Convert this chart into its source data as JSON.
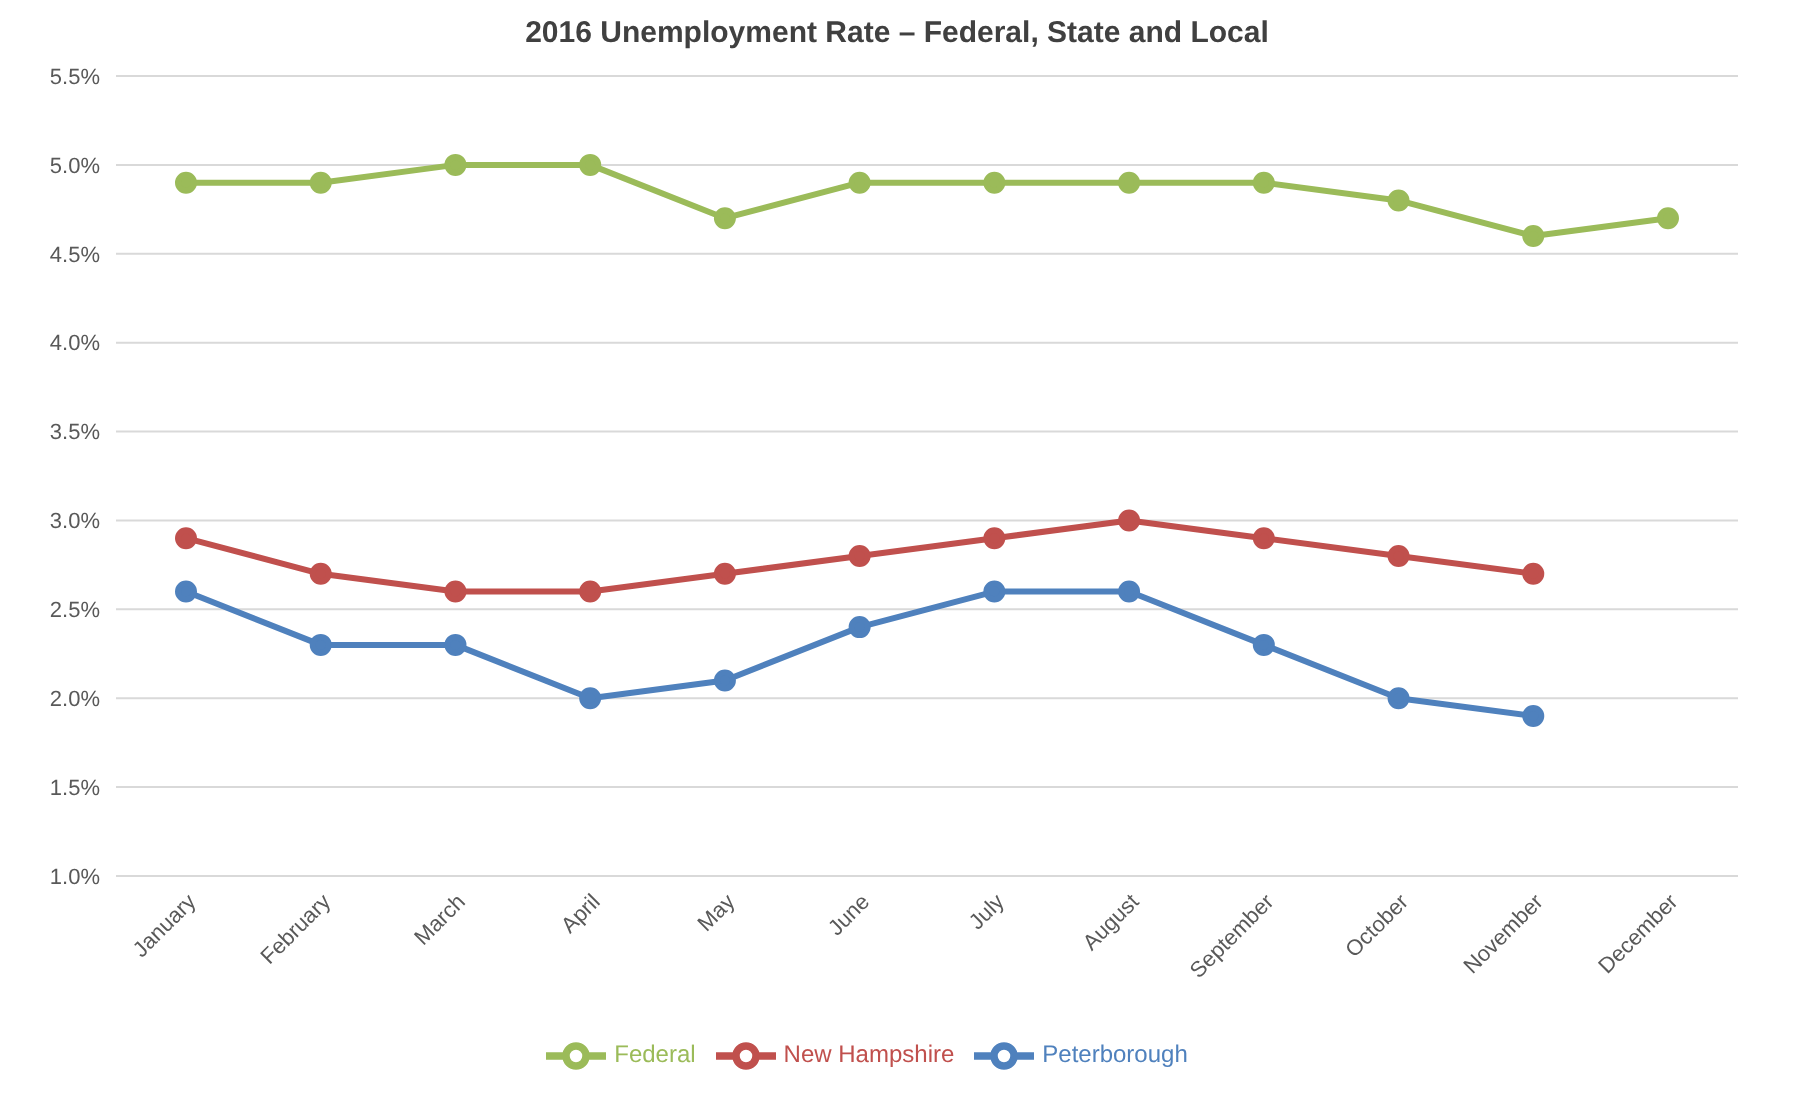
{
  "chart_data": {
    "type": "line",
    "title": "2016 Unemployment Rate – Federal, State and Local",
    "categories": [
      "January",
      "February",
      "March",
      "April",
      "May",
      "June",
      "July",
      "August",
      "September",
      "October",
      "November",
      "December"
    ],
    "series": [
      {
        "name": "Federal",
        "color": "#9bbb59",
        "values": [
          4.9,
          4.9,
          5.0,
          5.0,
          4.7,
          4.9,
          4.9,
          4.9,
          4.9,
          4.8,
          4.6,
          4.7
        ]
      },
      {
        "name": "New Hampshire",
        "color": "#c0504d",
        "values": [
          2.9,
          2.7,
          2.6,
          2.6,
          2.7,
          2.8,
          2.9,
          3.0,
          2.9,
          2.8,
          2.7,
          null
        ]
      },
      {
        "name": "Peterborough",
        "color": "#4f81bd",
        "values": [
          2.6,
          2.3,
          2.3,
          2.0,
          2.1,
          2.4,
          2.6,
          2.6,
          2.3,
          2.0,
          1.9,
          null
        ]
      }
    ],
    "ylim": [
      1.0,
      5.5
    ],
    "yticks": [
      {
        "value": 1.0,
        "label": "1.0%"
      },
      {
        "value": 1.5,
        "label": "1.5%"
      },
      {
        "value": 2.0,
        "label": "2.0%"
      },
      {
        "value": 2.5,
        "label": "2.5%"
      },
      {
        "value": 3.0,
        "label": "3.0%"
      },
      {
        "value": 3.5,
        "label": "3.5%"
      },
      {
        "value": 4.0,
        "label": "4.0%"
      },
      {
        "value": 4.5,
        "label": "4.5%"
      },
      {
        "value": 5.0,
        "label": "5.0%"
      },
      {
        "value": 5.5,
        "label": "5.5%"
      }
    ],
    "grid": "y",
    "legend": "bottom",
    "marker": "circle",
    "line_style": "solid"
  }
}
